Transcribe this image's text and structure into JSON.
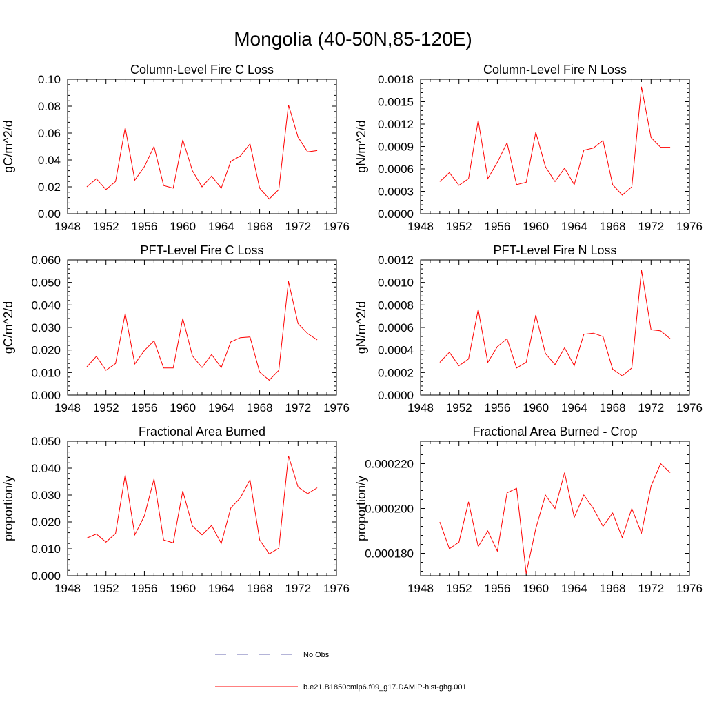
{
  "figure": {
    "title": "Mongolia (40-50N,85-120E)"
  },
  "legend": {
    "entries": [
      {
        "label": "No Obs",
        "style": "dashed",
        "color": "#6a6ab0"
      },
      {
        "label": "b.e21.B1850cmip6.f09_g17.DAMIP-hist-ghg.001",
        "style": "solid",
        "color": "#ff0000"
      }
    ]
  },
  "chart_data": [
    {
      "type": "line",
      "title": "Column-Level Fire C Loss",
      "ylabel": "gC/m^2/d",
      "xlim": [
        1948,
        1976
      ],
      "ylim": [
        0,
        0.1
      ],
      "xticks": [
        1948,
        1952,
        1956,
        1960,
        1964,
        1968,
        1972,
        1976
      ],
      "yticks": [
        "0.00",
        "0.02",
        "0.04",
        "0.06",
        "0.08",
        "0.10"
      ],
      "x": [
        1950,
        1951,
        1952,
        1953,
        1954,
        1955,
        1956,
        1957,
        1958,
        1959,
        1960,
        1961,
        1962,
        1963,
        1964,
        1965,
        1966,
        1967,
        1968,
        1969,
        1970,
        1971,
        1972,
        1973,
        1974
      ],
      "series": [
        {
          "color": "#ff0000",
          "values": [
            0.02,
            0.026,
            0.018,
            0.024,
            0.064,
            0.025,
            0.035,
            0.05,
            0.021,
            0.019,
            0.055,
            0.032,
            0.02,
            0.028,
            0.019,
            0.039,
            0.043,
            0.052,
            0.019,
            0.011,
            0.018,
            0.081,
            0.057,
            0.046,
            0.047
          ]
        }
      ]
    },
    {
      "type": "line",
      "title": "Column-Level Fire N Loss",
      "ylabel": "gN/m^2/d",
      "xlim": [
        1948,
        1976
      ],
      "ylim": [
        0,
        0.0018
      ],
      "xticks": [
        1948,
        1952,
        1956,
        1960,
        1964,
        1968,
        1972,
        1976
      ],
      "yticks": [
        "0.0000",
        "0.0003",
        "0.0006",
        "0.0009",
        "0.0012",
        "0.0015",
        "0.0018"
      ],
      "x": [
        1950,
        1951,
        1952,
        1953,
        1954,
        1955,
        1956,
        1957,
        1958,
        1959,
        1960,
        1961,
        1962,
        1963,
        1964,
        1965,
        1966,
        1967,
        1968,
        1969,
        1970,
        1971,
        1972,
        1973,
        1974
      ],
      "series": [
        {
          "color": "#ff0000",
          "values": [
            0.00043,
            0.00055,
            0.00038,
            0.00047,
            0.00125,
            0.00047,
            0.00069,
            0.00095,
            0.00039,
            0.00042,
            0.00109,
            0.00063,
            0.00043,
            0.00061,
            0.00039,
            0.00085,
            0.00088,
            0.00098,
            0.00039,
            0.00025,
            0.00036,
            0.0017,
            0.00102,
            0.00089,
            0.00089
          ]
        }
      ]
    },
    {
      "type": "line",
      "title": "PFT-Level Fire C Loss",
      "ylabel": "gC/m^2/d",
      "xlim": [
        1948,
        1976
      ],
      "ylim": [
        0,
        0.06
      ],
      "xticks": [
        1948,
        1952,
        1956,
        1960,
        1964,
        1968,
        1972,
        1976
      ],
      "yticks": [
        "0.000",
        "0.010",
        "0.020",
        "0.030",
        "0.040",
        "0.050",
        "0.060"
      ],
      "x": [
        1950,
        1951,
        1952,
        1953,
        1954,
        1955,
        1956,
        1957,
        1958,
        1959,
        1960,
        1961,
        1962,
        1963,
        1964,
        1965,
        1966,
        1967,
        1968,
        1969,
        1970,
        1971,
        1972,
        1973,
        1974
      ],
      "series": [
        {
          "color": "#ff0000",
          "values": [
            0.0125,
            0.0172,
            0.011,
            0.014,
            0.0362,
            0.0138,
            0.0198,
            0.0241,
            0.012,
            0.012,
            0.034,
            0.0174,
            0.0122,
            0.018,
            0.0122,
            0.0236,
            0.0255,
            0.0258,
            0.0102,
            0.0066,
            0.011,
            0.0505,
            0.0317,
            0.0273,
            0.0245
          ]
        }
      ]
    },
    {
      "type": "line",
      "title": "PFT-Level Fire N Loss",
      "ylabel": "gN/m^2/d",
      "xlim": [
        1948,
        1976
      ],
      "ylim": [
        0,
        0.0012
      ],
      "xticks": [
        1948,
        1952,
        1956,
        1960,
        1964,
        1968,
        1972,
        1976
      ],
      "yticks": [
        "0.0000",
        "0.0002",
        "0.0004",
        "0.0006",
        "0.0008",
        "0.0010",
        "0.0012"
      ],
      "x": [
        1950,
        1951,
        1952,
        1953,
        1954,
        1955,
        1956,
        1957,
        1958,
        1959,
        1960,
        1961,
        1962,
        1963,
        1964,
        1965,
        1966,
        1967,
        1968,
        1969,
        1970,
        1971,
        1972,
        1973,
        1974
      ],
      "series": [
        {
          "color": "#ff0000",
          "values": [
            0.00029,
            0.00038,
            0.00026,
            0.00032,
            0.00076,
            0.00029,
            0.00043,
            0.0005,
            0.00024,
            0.00029,
            0.00071,
            0.00037,
            0.00027,
            0.00042,
            0.00026,
            0.00054,
            0.00055,
            0.00052,
            0.00023,
            0.00017,
            0.00024,
            0.00111,
            0.00058,
            0.00057,
            0.0005
          ]
        }
      ]
    },
    {
      "type": "line",
      "title": "Fractional Area Burned",
      "ylabel": "proportion/y",
      "xlim": [
        1948,
        1976
      ],
      "ylim": [
        0,
        0.05
      ],
      "xticks": [
        1948,
        1952,
        1956,
        1960,
        1964,
        1968,
        1972,
        1976
      ],
      "yticks": [
        "0.000",
        "0.010",
        "0.020",
        "0.030",
        "0.040",
        "0.050"
      ],
      "x": [
        1950,
        1951,
        1952,
        1953,
        1954,
        1955,
        1956,
        1957,
        1958,
        1959,
        1960,
        1961,
        1962,
        1963,
        1964,
        1965,
        1966,
        1967,
        1968,
        1969,
        1970,
        1971,
        1972,
        1973,
        1974
      ],
      "series": [
        {
          "color": "#ff0000",
          "values": [
            0.014,
            0.0155,
            0.0125,
            0.0157,
            0.0375,
            0.0152,
            0.0222,
            0.036,
            0.0133,
            0.0122,
            0.0315,
            0.0185,
            0.0152,
            0.0187,
            0.012,
            0.0252,
            0.029,
            0.0357,
            0.0133,
            0.0081,
            0.0102,
            0.0446,
            0.033,
            0.0305,
            0.0327
          ]
        }
      ]
    },
    {
      "type": "line",
      "title": "Fractional Area Burned - Crop",
      "ylabel": "proportion/y",
      "xlim": [
        1948,
        1976
      ],
      "ylim": [
        0.00017,
        0.00023
      ],
      "xticks": [
        1948,
        1952,
        1956,
        1960,
        1964,
        1968,
        1972,
        1976
      ],
      "yticks": [
        "0.000180",
        "0.000200",
        "0.000220"
      ],
      "ytick_values": [
        0.00018,
        0.0002,
        0.00022
      ],
      "x": [
        1950,
        1951,
        1952,
        1953,
        1954,
        1955,
        1956,
        1957,
        1958,
        1959,
        1960,
        1961,
        1962,
        1963,
        1964,
        1965,
        1966,
        1967,
        1968,
        1969,
        1970,
        1971,
        1972,
        1973,
        1974
      ],
      "series": [
        {
          "color": "#ff0000",
          "values": [
            0.000194,
            0.000182,
            0.000185,
            0.000203,
            0.000183,
            0.00019,
            0.000181,
            0.000207,
            0.000209,
            0.000171,
            0.000191,
            0.000206,
            0.0002,
            0.000216,
            0.000196,
            0.000206,
            0.0002,
            0.000192,
            0.000198,
            0.000187,
            0.0002,
            0.000189,
            0.00021,
            0.00022,
            0.000216
          ]
        }
      ]
    }
  ]
}
